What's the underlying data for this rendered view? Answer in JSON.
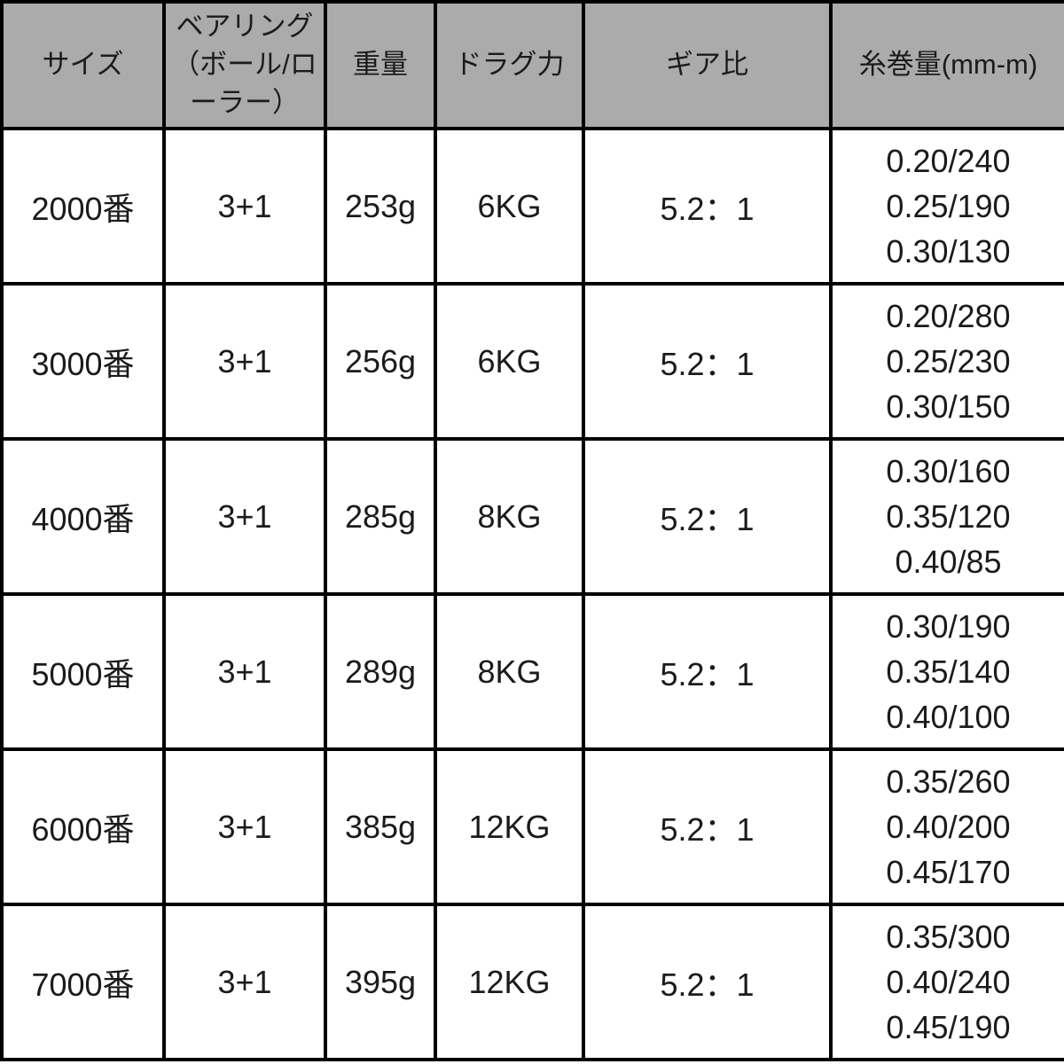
{
  "table": {
    "columns": [
      {
        "key": "size",
        "label": "サイズ"
      },
      {
        "key": "bearings",
        "label": "ベアリング（ボール/ローラー）"
      },
      {
        "key": "weight",
        "label": "重量"
      },
      {
        "key": "drag",
        "label": "ドラグ力"
      },
      {
        "key": "gear_ratio",
        "label": "ギア比"
      },
      {
        "key": "line_capacity",
        "label": "糸巻量(mm-m)"
      }
    ],
    "rows": [
      {
        "size": "2000番",
        "bearings": "3+1",
        "weight": "253g",
        "drag": "6KG",
        "gear_ratio": "5.2：1",
        "line_capacity": [
          "0.20/240",
          "0.25/190",
          "0.30/130"
        ]
      },
      {
        "size": "3000番",
        "bearings": "3+1",
        "weight": "256g",
        "drag": "6KG",
        "gear_ratio": "5.2：1",
        "line_capacity": [
          "0.20/280",
          "0.25/230",
          "0.30/150"
        ]
      },
      {
        "size": "4000番",
        "bearings": "3+1",
        "weight": "285g",
        "drag": "8KG",
        "gear_ratio": "5.2：1",
        "line_capacity": [
          "0.30/160",
          "0.35/120",
          "0.40/85"
        ]
      },
      {
        "size": "5000番",
        "bearings": "3+1",
        "weight": "289g",
        "drag": "8KG",
        "gear_ratio": "5.2：1",
        "line_capacity": [
          "0.30/190",
          "0.35/140",
          "0.40/100"
        ]
      },
      {
        "size": "6000番",
        "bearings": "3+1",
        "weight": "385g",
        "drag": "12KG",
        "gear_ratio": "5.2：1",
        "line_capacity": [
          "0.35/260",
          "0.40/200",
          "0.45/170"
        ]
      },
      {
        "size": "7000番",
        "bearings": "3+1",
        "weight": "395g",
        "drag": "12KG",
        "gear_ratio": "5.2：1",
        "line_capacity": [
          "0.35/300",
          "0.40/240",
          "0.45/190"
        ]
      }
    ]
  },
  "colors": {
    "header_bg": "#ABABAB",
    "row_bg": "#FFFFFF",
    "border": "#000000",
    "text": "#1B1B1B"
  }
}
